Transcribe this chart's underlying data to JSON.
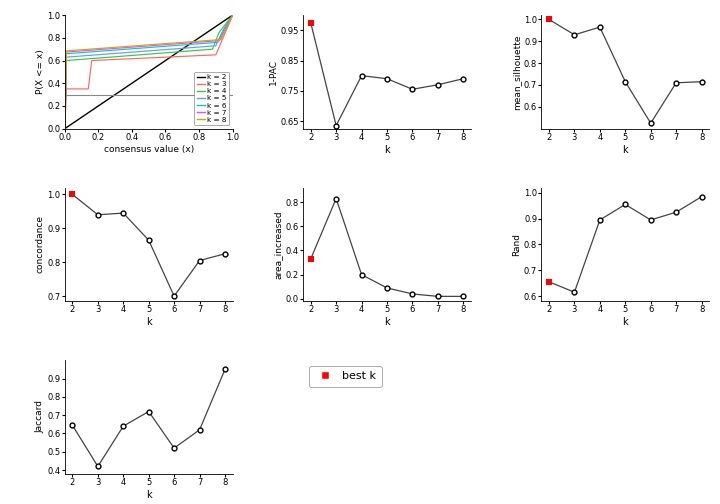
{
  "line_colors": {
    "k2": "#000000",
    "k3": "#FF6666",
    "k4": "#33CC33",
    "k5": "#6699FF",
    "k6": "#00CCCC",
    "k7": "#FF44FF",
    "k8": "#CCAA00"
  },
  "hline_y": 0.3,
  "k_values": [
    2,
    3,
    4,
    5,
    6,
    7,
    8
  ],
  "pac_1": [
    0.975,
    0.635,
    0.8,
    0.79,
    0.755,
    0.77,
    0.79
  ],
  "mean_silhouette": [
    1.0,
    0.93,
    0.965,
    0.715,
    0.525,
    0.71,
    0.715
  ],
  "concordance": [
    1.0,
    0.94,
    0.945,
    0.865,
    0.7,
    0.805,
    0.825
  ],
  "area_increased": [
    0.33,
    0.83,
    0.2,
    0.09,
    0.04,
    0.02,
    0.02
  ],
  "rand": [
    0.655,
    0.615,
    0.895,
    0.955,
    0.895,
    0.925,
    0.985
  ],
  "jaccard": [
    0.645,
    0.42,
    0.64,
    0.72,
    0.52,
    0.62,
    0.95
  ],
  "pac_best_k_idx": 0,
  "silhouette_best_k_idx": 0,
  "concordance_best_k_idx": 0,
  "area_best_k_idx": 0,
  "rand_best_k_idx": 0,
  "jaccard_best_k_idx": -1,
  "bg_color": "#FFFFFF",
  "open_circle_color": "#FFFFFF",
  "open_circle_edgecolor": "#000000",
  "line_color": "#444444",
  "red_dot_color": "#FF0000",
  "gray_line": "#888888"
}
